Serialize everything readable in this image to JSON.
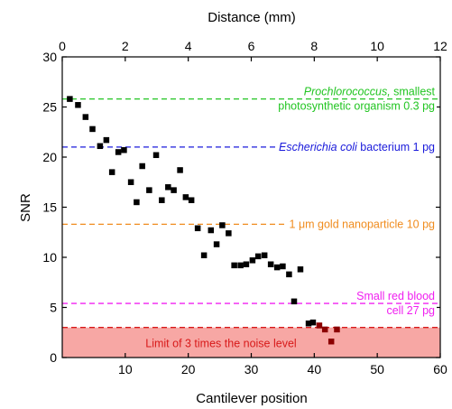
{
  "chart_data": {
    "type": "scatter",
    "xlabel": "Cantilever position",
    "ylabel": "SNR",
    "x2label": "Distance (mm)",
    "xlim": [
      0,
      60
    ],
    "ylim": [
      0,
      30
    ],
    "x2lim": [
      0,
      12
    ],
    "xticks": [
      10,
      20,
      30,
      40,
      50,
      60
    ],
    "yticks": [
      0,
      5,
      10,
      15,
      20,
      25,
      30
    ],
    "x2ticks": [
      0,
      2,
      4,
      6,
      8,
      10,
      12
    ],
    "grid": false,
    "series": [
      {
        "marker": "square",
        "color": "#000000",
        "points": [
          [
            1.2,
            25.8
          ],
          [
            2.5,
            25.2
          ],
          [
            3.7,
            24.0
          ],
          [
            4.8,
            22.8
          ],
          [
            6.0,
            21.1
          ],
          [
            7.0,
            21.7
          ],
          [
            7.9,
            18.5
          ],
          [
            8.9,
            20.5
          ],
          [
            9.8,
            20.7
          ],
          [
            10.9,
            17.5
          ],
          [
            11.8,
            15.5
          ],
          [
            12.7,
            19.1
          ],
          [
            13.8,
            16.7
          ],
          [
            14.9,
            20.2
          ],
          [
            15.8,
            15.7
          ],
          [
            16.8,
            17.0
          ],
          [
            17.7,
            16.7
          ],
          [
            18.7,
            18.7
          ],
          [
            19.6,
            16.0
          ],
          [
            20.5,
            15.7
          ],
          [
            21.5,
            12.9
          ],
          [
            22.5,
            10.2
          ],
          [
            23.6,
            12.7
          ],
          [
            24.5,
            11.3
          ],
          [
            25.4,
            13.2
          ],
          [
            26.4,
            12.4
          ],
          [
            27.3,
            9.2
          ],
          [
            28.3,
            9.2
          ],
          [
            29.2,
            9.3
          ],
          [
            30.2,
            9.7
          ],
          [
            31.1,
            10.1
          ],
          [
            32.1,
            10.2
          ],
          [
            33.1,
            9.3
          ],
          [
            34.1,
            9.0
          ],
          [
            35.0,
            9.1
          ],
          [
            36.0,
            8.3
          ],
          [
            36.8,
            5.6
          ],
          [
            37.8,
            8.8
          ],
          [
            39.1,
            3.4
          ],
          [
            39.8,
            3.5
          ],
          [
            40.8,
            3.2
          ],
          [
            41.7,
            2.8
          ],
          [
            42.7,
            1.6
          ],
          [
            43.6,
            2.8
          ]
        ],
        "highlight_points": [
          [
            40.8,
            3.2
          ],
          [
            41.7,
            2.8
          ],
          [
            42.7,
            1.6
          ],
          [
            43.6,
            2.8
          ]
        ],
        "highlight_color": "#8b0000"
      }
    ],
    "reference_lines": [
      {
        "y": 25.8,
        "color": "#22c522",
        "label_italic": "Prochlorococcus,",
        "label_line1": " smallest",
        "label_line2": "photosynthetic organism 0.3 pg"
      },
      {
        "y": 21.0,
        "color": "#1a1adb",
        "label_italic": "Escherichia coli",
        "label_line1": " bacterium 1 pg",
        "label_line2": ""
      },
      {
        "y": 13.3,
        "color": "#f08c1e",
        "label_italic": "",
        "label_line1": "1 μm gold nanoparticle 10 pg",
        "label_line2": ""
      },
      {
        "y": 5.4,
        "color": "#f020f0",
        "label_italic": "",
        "label_line1": "Small red blood",
        "label_line2": "cell 27 pg"
      }
    ],
    "noise_band": {
      "y_max": 3.0,
      "fill": "#f7a7a4",
      "line_color": "#d81a1a",
      "label": "Limit of 3 times the noise level",
      "label_color": "#d81a1a"
    }
  }
}
